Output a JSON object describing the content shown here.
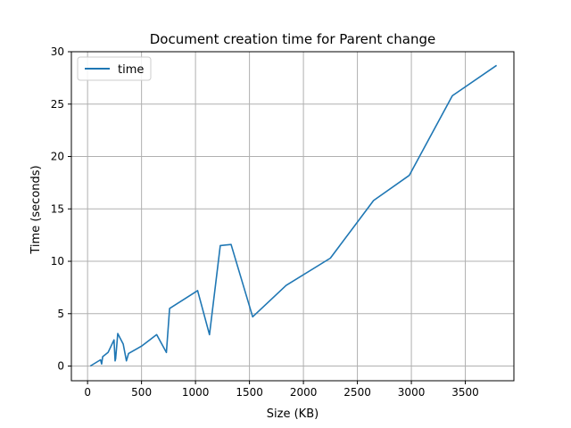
{
  "chart_data": {
    "type": "line",
    "title": "Document creation time for Parent change",
    "xlabel": "Size (KB)",
    "ylabel": "Time (seconds)",
    "xlim": [
      -150,
      3950
    ],
    "ylim": [
      -1.4,
      30
    ],
    "xticks": [
      0,
      500,
      1000,
      1500,
      2000,
      2500,
      3000,
      3500
    ],
    "yticks": [
      0,
      5,
      10,
      15,
      20,
      25,
      30
    ],
    "grid": true,
    "legend": {
      "placement": "top-left"
    },
    "series": [
      {
        "name": "time",
        "color": "#1f77b4",
        "x": [
          25,
          120,
          130,
          140,
          190,
          245,
          255,
          260,
          280,
          330,
          360,
          380,
          500,
          640,
          730,
          760,
          1020,
          1130,
          1230,
          1330,
          1530,
          1840,
          2250,
          2650,
          2980,
          3380,
          3790
        ],
        "y": [
          0.0,
          0.6,
          0.2,
          0.9,
          1.3,
          2.5,
          0.5,
          0.7,
          3.1,
          2.1,
          0.5,
          1.2,
          1.9,
          3.0,
          1.3,
          5.5,
          7.2,
          3.0,
          11.5,
          11.6,
          4.7,
          7.7,
          10.3,
          15.8,
          18.2,
          25.8,
          28.7
        ]
      }
    ]
  }
}
